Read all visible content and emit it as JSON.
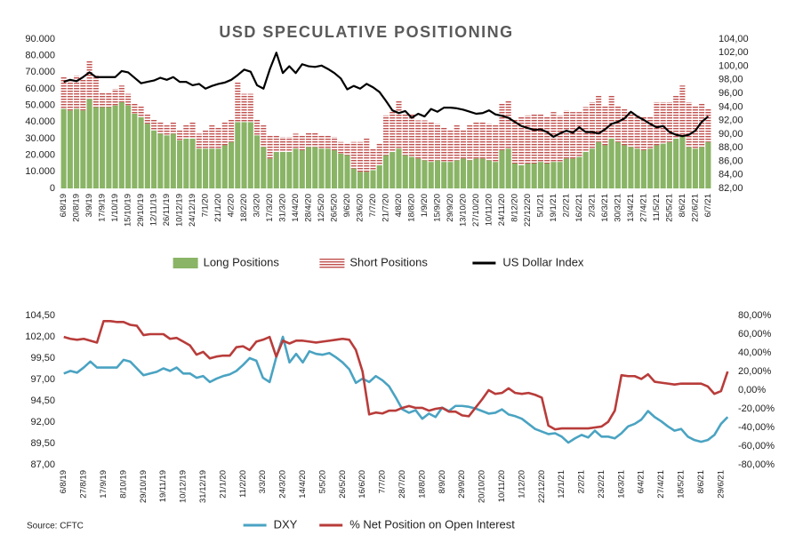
{
  "chart_data": [
    {
      "type": "bar",
      "title": "USD SPECULATIVE POSITIONING",
      "categories": [
        "6/8/19",
        null,
        "20/8/19",
        null,
        "3/9/19",
        null,
        "17/9/19",
        null,
        "1/10/19",
        null,
        "15/10/19",
        null,
        "29/10/19",
        null,
        "12/11/19",
        null,
        "26/11/19",
        null,
        "10/12/19",
        null,
        "24/12/19",
        null,
        "7/1/20",
        null,
        "21/1/20",
        null,
        "4/2/20",
        null,
        "18/2/20",
        null,
        "3/3/20",
        null,
        "17/3/20",
        null,
        "31/3/20",
        null,
        "14/4/20",
        null,
        "28/4/20",
        null,
        "12/5/20",
        null,
        "26/5/20",
        null,
        "9/6/20",
        null,
        "23/6/20",
        null,
        "7/7/20",
        null,
        "21/7/20",
        null,
        "4/8/20",
        null,
        "18/8/20",
        null,
        "1/9/20",
        null,
        "15/9/20",
        null,
        "29/9/20",
        null,
        "13/10/20",
        null,
        "27/10/20",
        null,
        "10/11/20",
        null,
        "24/11/20",
        null,
        "8/12/20",
        null,
        "22/12/20",
        null,
        "5/1/21",
        null,
        "19/1/21",
        null,
        "2/2/21",
        null,
        "16/2/21",
        null,
        "2/3/21",
        null,
        "16/3/21",
        null,
        "30/3/21",
        null,
        "13/4/21",
        null,
        "27/4/21",
        null,
        "11/5/21",
        null,
        "25/5/21",
        null,
        "8/6/21",
        null,
        "22/6/21",
        null,
        "6/7/21"
      ],
      "series": [
        {
          "name": "Long Positions",
          "color": "#8ab466",
          "values": [
            48000,
            47000,
            48000,
            47000,
            54000,
            49000,
            49000,
            49000,
            50000,
            52000,
            50000,
            45000,
            43000,
            39000,
            35000,
            33000,
            32000,
            33000,
            29000,
            30000,
            30000,
            24000,
            24000,
            24000,
            24000,
            26000,
            28000,
            40000,
            40000,
            40000,
            32000,
            25000,
            18000,
            22000,
            22000,
            22000,
            24000,
            23000,
            25000,
            25000,
            24000,
            24000,
            23000,
            21000,
            20000,
            12000,
            10000,
            10000,
            11000,
            14000,
            20000,
            22000,
            24000,
            20000,
            19000,
            18000,
            17000,
            16000,
            17000,
            16000,
            16000,
            17000,
            18000,
            17000,
            18000,
            18000,
            17000,
            16000,
            23000,
            24000,
            15000,
            14000,
            15000,
            15000,
            16000,
            15000,
            16000,
            16000,
            18000,
            18000,
            19000,
            22000,
            24000,
            28000,
            26000,
            30000,
            28000,
            26000,
            25000,
            24000,
            23000,
            24000,
            26000,
            27000,
            28000,
            30000,
            32000,
            25000,
            24000,
            25000,
            28000
          ]
        },
        {
          "name": "Short Positions",
          "color": "#c0504d",
          "pattern": "hatch",
          "values": [
            19000,
            19000,
            20000,
            19000,
            23000,
            19000,
            9000,
            9000,
            10000,
            10000,
            7000,
            6000,
            7000,
            6000,
            7000,
            7000,
            6000,
            7000,
            6000,
            8000,
            10000,
            9000,
            11000,
            14000,
            13000,
            14000,
            14000,
            24000,
            17000,
            17000,
            10000,
            13000,
            14000,
            10000,
            9000,
            9000,
            9000,
            9000,
            9000,
            9000,
            8000,
            8000,
            8000,
            7000,
            7000,
            16000,
            18000,
            20000,
            13000,
            13000,
            24000,
            25000,
            29000,
            25000,
            26000,
            23000,
            24000,
            24000,
            22000,
            21000,
            19000,
            21000,
            17000,
            21000,
            22000,
            22000,
            22000,
            22000,
            28000,
            29000,
            27000,
            29000,
            29000,
            30000,
            29000,
            28000,
            30000,
            28000,
            29000,
            28000,
            27000,
            27000,
            28000,
            28000,
            24000,
            26000,
            22000,
            22000,
            21000,
            20000,
            20000,
            19000,
            26000,
            25000,
            24000,
            26000,
            30000,
            27000,
            26000,
            26000,
            20000
          ]
        },
        {
          "name": "US Dollar Index",
          "color": "#000000",
          "type": "line",
          "axis": "y2",
          "values": [
            97.7,
            98.0,
            97.8,
            98.4,
            99.1,
            98.4,
            98.4,
            98.4,
            98.4,
            99.3,
            99.1,
            98.3,
            97.5,
            97.7,
            97.9,
            98.3,
            98.0,
            98.4,
            97.7,
            97.7,
            97.2,
            97.4,
            96.7,
            97.1,
            97.4,
            97.6,
            98.0,
            98.7,
            99.5,
            99.2,
            97.2,
            96.7,
            99.6,
            102.0,
            99.0,
            100.0,
            99.0,
            100.3,
            100.0,
            99.9,
            100.1,
            99.6,
            99.0,
            98.2,
            96.6,
            97.1,
            96.7,
            97.4,
            96.9,
            96.2,
            94.9,
            93.5,
            93.1,
            93.4,
            92.4,
            93.0,
            92.6,
            93.7,
            93.3,
            93.9,
            93.9,
            93.8,
            93.6,
            93.3,
            93.0,
            93.1,
            93.5,
            92.9,
            92.7,
            92.4,
            91.8,
            91.2,
            90.9,
            90.6,
            90.7,
            90.3,
            89.6,
            90.1,
            90.5,
            90.2,
            91.0,
            90.3,
            90.3,
            90.1,
            90.7,
            91.5,
            91.8,
            92.3,
            93.3,
            92.6,
            92.1,
            91.5,
            91.0,
            91.2,
            90.3,
            89.9,
            89.7,
            89.9,
            90.5,
            91.8,
            92.6
          ]
        }
      ],
      "ylim": [
        0,
        90000
      ],
      "yticks": [
        0,
        {
          "value": 10000,
          "label": "10.000"
        },
        {
          "value": 20000,
          "label": "20.000"
        },
        {
          "value": 30000,
          "label": "30.000"
        },
        {
          "value": 40000,
          "label": "40.000"
        },
        {
          "value": 50000,
          "label": "50.000"
        },
        {
          "value": 60000,
          "label": "60.000"
        },
        {
          "value": 70000,
          "label": "70.000"
        },
        {
          "value": 80000,
          "label": "80.000"
        },
        {
          "value": 90000,
          "label": "90.000"
        }
      ],
      "y2lim": [
        82,
        104
      ],
      "y2ticks": [
        {
          "value": 82,
          "label": "82,00"
        },
        {
          "value": 84,
          "label": "84,00"
        },
        {
          "value": 86,
          "label": "86,00"
        },
        {
          "value": 88,
          "label": "88,00"
        },
        {
          "value": 90,
          "label": "90,00"
        },
        {
          "value": 92,
          "label": "92,00"
        },
        {
          "value": 94,
          "label": "94,00"
        },
        {
          "value": 96,
          "label": "96,00"
        },
        {
          "value": 98,
          "label": "98,00"
        },
        {
          "value": 100,
          "label": "100,00"
        },
        {
          "value": 102,
          "label": "102,00"
        },
        {
          "value": 104,
          "label": "104,00"
        }
      ],
      "legend": "bottom"
    },
    {
      "type": "line",
      "categories": [
        "6/8/19",
        null,
        null,
        "27/8/19",
        null,
        null,
        "17/9/19",
        null,
        null,
        "8/10/19",
        null,
        null,
        "29/10/19",
        null,
        null,
        "19/11/19",
        null,
        null,
        "10/12/19",
        null,
        null,
        "31/12/19",
        null,
        null,
        "21/1/20",
        null,
        null,
        "11/2/20",
        null,
        null,
        "3/3/20",
        null,
        null,
        "24/3/20",
        null,
        null,
        "14/4/20",
        null,
        null,
        "5/5/20",
        null,
        null,
        "26/5/20",
        null,
        null,
        "16/6/20",
        null,
        null,
        "7/7/20",
        null,
        null,
        "28/7/20",
        null,
        null,
        "18/8/20",
        null,
        null,
        "8/9/20",
        null,
        null,
        "29/9/20",
        null,
        null,
        "20/10/20",
        null,
        null,
        "10/11/20",
        null,
        null,
        "1/12/20",
        null,
        null,
        "22/12/20",
        null,
        null,
        "12/1/21",
        null,
        null,
        "2/2/21",
        null,
        null,
        "23/2/21",
        null,
        null,
        "16/3/21",
        null,
        null,
        "6/4/21",
        null,
        null,
        "27/4/21",
        null,
        null,
        "18/5/21",
        null,
        null,
        "8/6/21",
        null,
        null,
        "29/6/21",
        null
      ],
      "series": [
        {
          "name": "DXY",
          "color": "#4aa3c2",
          "values": [
            97.7,
            98.0,
            97.8,
            98.4,
            99.1,
            98.4,
            98.4,
            98.4,
            98.4,
            99.3,
            99.1,
            98.3,
            97.5,
            97.7,
            97.9,
            98.3,
            98.0,
            98.4,
            97.7,
            97.7,
            97.2,
            97.4,
            96.7,
            97.1,
            97.4,
            97.6,
            98.0,
            98.7,
            99.5,
            99.2,
            97.2,
            96.7,
            99.6,
            102.0,
            99.0,
            100.0,
            99.0,
            100.3,
            100.0,
            99.9,
            100.1,
            99.6,
            99.0,
            98.2,
            96.6,
            97.1,
            96.7,
            97.4,
            96.9,
            96.2,
            94.9,
            93.5,
            93.1,
            93.4,
            92.4,
            93.0,
            92.6,
            93.7,
            93.3,
            93.9,
            93.9,
            93.8,
            93.6,
            93.3,
            93.0,
            93.1,
            93.5,
            92.9,
            92.7,
            92.4,
            91.8,
            91.2,
            90.9,
            90.6,
            90.7,
            90.3,
            89.6,
            90.1,
            90.5,
            90.2,
            91.0,
            90.3,
            90.3,
            90.1,
            90.7,
            91.5,
            91.8,
            92.3,
            93.3,
            92.6,
            92.1,
            91.5,
            91.0,
            91.2,
            90.3,
            89.9,
            89.7,
            89.9,
            90.5,
            91.8,
            92.6
          ]
        },
        {
          "name": "% Net Position on Open Interest",
          "color": "#b83c3a",
          "axis": "y2",
          "values": [
            57,
            55,
            54,
            55,
            53,
            51,
            74,
            74,
            73,
            73,
            70,
            69,
            59,
            60,
            60,
            60,
            55,
            56,
            52,
            48,
            38,
            41,
            34,
            36,
            37,
            37,
            46,
            47,
            43,
            52,
            54,
            57,
            36,
            53,
            50,
            53,
            53,
            52,
            51,
            52,
            53,
            54,
            55,
            54,
            43,
            20,
            -26,
            -24,
            -25,
            -22,
            -22,
            -19,
            -17,
            -19,
            -19,
            -22,
            -20,
            -19,
            -23,
            -23,
            -27,
            -28,
            -19,
            -10,
            0,
            -4,
            -3,
            2,
            -3,
            -4,
            -3,
            -5,
            -8,
            -38,
            -42,
            -41,
            -41,
            -41,
            -41,
            -41,
            -40,
            -39,
            -34,
            -22,
            16,
            15,
            15,
            12,
            17,
            9,
            8,
            7,
            6,
            7,
            7,
            7,
            7,
            4,
            -4,
            -1,
            20
          ]
        }
      ],
      "ylim": [
        87,
        104.5
      ],
      "yticks": [
        {
          "value": 87,
          "label": "87,00"
        },
        {
          "value": 89.5,
          "label": "89,50"
        },
        {
          "value": 92,
          "label": "92,00"
        },
        {
          "value": 94.5,
          "label": "94,50"
        },
        {
          "value": 97,
          "label": "97,00"
        },
        {
          "value": 99.5,
          "label": "99,50"
        },
        {
          "value": 102,
          "label": "102,00"
        },
        {
          "value": 104.5,
          "label": "104,50"
        }
      ],
      "y2lim": [
        -80,
        80
      ],
      "y2ticks": [
        {
          "value": -80,
          "label": "-80,00%"
        },
        {
          "value": -60,
          "label": "-60,00%"
        },
        {
          "value": -40,
          "label": "-40,00%"
        },
        {
          "value": -20,
          "label": "-20,00%"
        },
        {
          "value": 0,
          "label": "0,00%"
        },
        {
          "value": 20,
          "label": "20,00%"
        },
        {
          "value": 40,
          "label": "40,00%"
        },
        {
          "value": 60,
          "label": "60,00%"
        },
        {
          "value": 80,
          "label": "80,00%"
        }
      ],
      "legend": "bottom",
      "source": "Source: CFTC"
    }
  ]
}
